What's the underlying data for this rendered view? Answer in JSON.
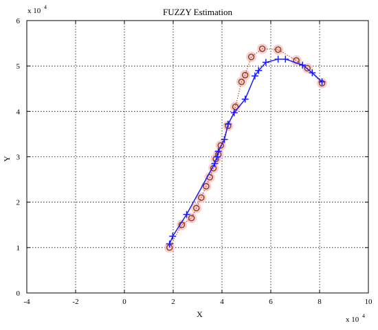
{
  "chart_data": {
    "type": "line",
    "title": "FUZZY Estimation",
    "xlabel": "X",
    "ylabel": "Y",
    "x_multiplier_label": "x 10",
    "x_multiplier_exp": "4",
    "y_multiplier_label": "x 10",
    "y_multiplier_exp": "4",
    "xlim": [
      -4,
      10
    ],
    "ylim": [
      0,
      6
    ],
    "xticks": [
      "-4",
      "-2",
      "0",
      "2",
      "4",
      "6",
      "8",
      "10"
    ],
    "yticks": [
      "0",
      "1",
      "2",
      "3",
      "4",
      "5",
      "6"
    ],
    "grid": true,
    "series": [
      {
        "marker": "circle",
        "line": "dotted",
        "color": "#cc2200",
        "marker_color": "#8b3a1a",
        "halo_color": "#f6c6c6",
        "x": [
          1.85,
          2.35,
          2.75,
          2.95,
          3.15,
          3.35,
          3.5,
          3.65,
          3.75,
          3.85,
          3.95,
          4.25,
          4.55,
          4.8,
          4.95,
          5.2,
          5.65,
          6.3,
          7.05,
          7.5,
          8.1
        ],
        "y": [
          1.0,
          1.5,
          1.65,
          1.87,
          2.1,
          2.35,
          2.55,
          2.75,
          2.95,
          3.05,
          3.25,
          3.68,
          4.1,
          4.65,
          4.8,
          5.2,
          5.38,
          5.36,
          5.12,
          4.95,
          4.62
        ]
      },
      {
        "marker": "plus",
        "line": "solid",
        "color": "#1a1aff",
        "x": [
          1.85,
          1.98,
          2.55,
          3.7,
          3.8,
          3.85,
          4.1,
          4.25,
          4.5,
          4.95,
          5.35,
          5.5,
          5.8,
          6.3,
          6.6,
          7.3,
          7.7,
          8.1
        ],
        "y": [
          1.08,
          1.25,
          1.73,
          2.85,
          3.0,
          3.12,
          3.38,
          3.72,
          3.97,
          4.27,
          4.78,
          4.9,
          5.08,
          5.15,
          5.15,
          5.02,
          4.85,
          4.65
        ]
      }
    ]
  }
}
